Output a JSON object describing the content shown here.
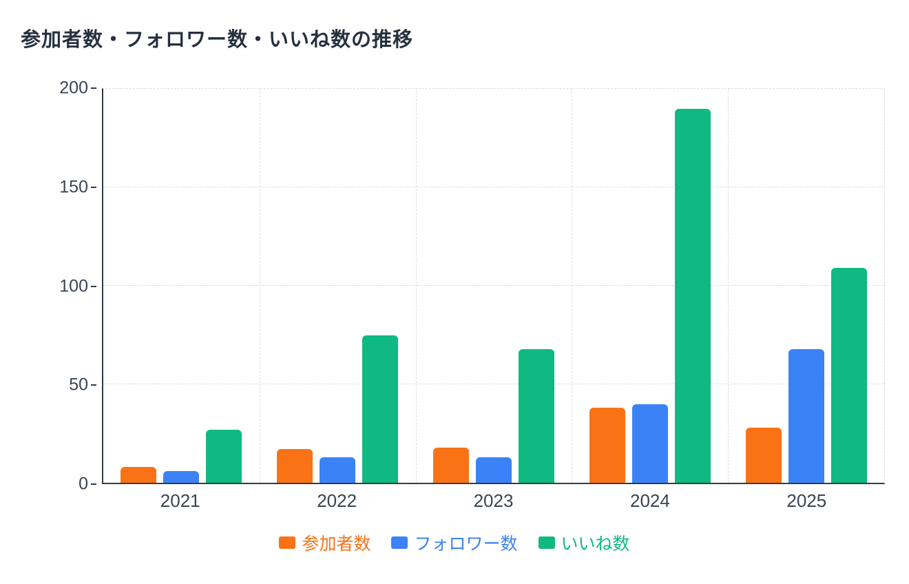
{
  "chart_data": {
    "type": "bar",
    "title": "参加者数・フォロワー数・いいね数の推移",
    "categories": [
      "2021",
      "2022",
      "2023",
      "2024",
      "2025"
    ],
    "series": [
      {
        "name": "参加者数",
        "color": "#f97316",
        "values": [
          8,
          17,
          18,
          38,
          28
        ]
      },
      {
        "name": "フォロワー数",
        "color": "#3b82f6",
        "values": [
          6,
          13,
          13,
          40,
          68
        ]
      },
      {
        "name": "いいね数",
        "color": "#10b981",
        "values": [
          27,
          75,
          68,
          190,
          109
        ]
      }
    ],
    "ylim": [
      0,
      200
    ],
    "yticks": [
      0,
      50,
      100,
      150,
      200
    ],
    "grid": "dashed",
    "legend_position": "bottom",
    "xlabel": "",
    "ylabel": ""
  },
  "colors": {
    "axis": "#333a45",
    "gridline": "#d7dbe2",
    "tick_text": "#3a4352",
    "title_text": "#27303f",
    "background": "#ffffff"
  }
}
